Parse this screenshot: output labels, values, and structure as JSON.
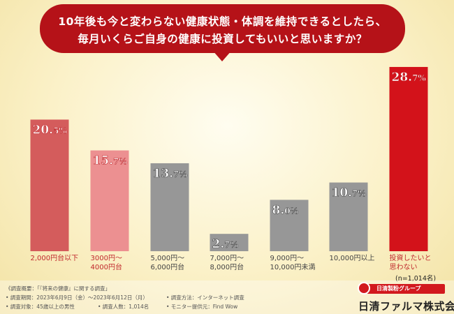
{
  "question": {
    "line1": "10年後も今と変わらない健康状態・体調を維持できるとしたら、",
    "line2": "毎月いくらご自身の健康に投資してもいいと思いますか？"
  },
  "chart_data": {
    "type": "bar",
    "categories": [
      [
        "2,000円台以下"
      ],
      [
        "3000円～",
        "4000円台"
      ],
      [
        "5,000円～",
        "6,000円台"
      ],
      [
        "7,000円～",
        "8,000円台"
      ],
      [
        "9,000円～",
        "10,000円未満"
      ],
      [
        "10,000円以上"
      ],
      [
        "投資したいと",
        "思わない"
      ]
    ],
    "values": [
      20.5,
      15.7,
      13.7,
      2.7,
      8.0,
      10.7,
      28.7
    ],
    "value_labels": [
      {
        "main": "20.",
        "dec": "5%"
      },
      {
        "main": "15.",
        "dec": "7%"
      },
      {
        "main": "13.",
        "dec": "7%"
      },
      {
        "main": "2.",
        "dec": "7%"
      },
      {
        "main": "8.",
        "dec": "0%"
      },
      {
        "main": "10.",
        "dec": "7%"
      },
      {
        "main": "28.",
        "dec": "7%"
      }
    ],
    "bar_colors": [
      "#d45c5c",
      "#ec9091",
      "#979797",
      "#979797",
      "#979797",
      "#979797",
      "#d3121a"
    ],
    "label_colors": [
      "#c0282d",
      "#c0282d",
      "#444444",
      "#444444",
      "#444444",
      "#444444",
      "#c0282d"
    ],
    "ylim": [
      0,
      30
    ],
    "grid": false
  },
  "sample": "(n=1,014名)",
  "footer": {
    "overview": "《調査概要：「『将来の健康』に関する調査」",
    "period": "• 調査期間：2023年6月9日（金）～2023年6月12日（月）",
    "method": "• 調査方法：インターネット調査",
    "target": "• 調査対象：45歳以上の男性",
    "count": "• 調査人数：1,014名",
    "monitor": "• モニター提供元：Find Wow"
  },
  "logo": {
    "group": "日清製粉グループ",
    "company": "日清ファルマ株式会社"
  }
}
